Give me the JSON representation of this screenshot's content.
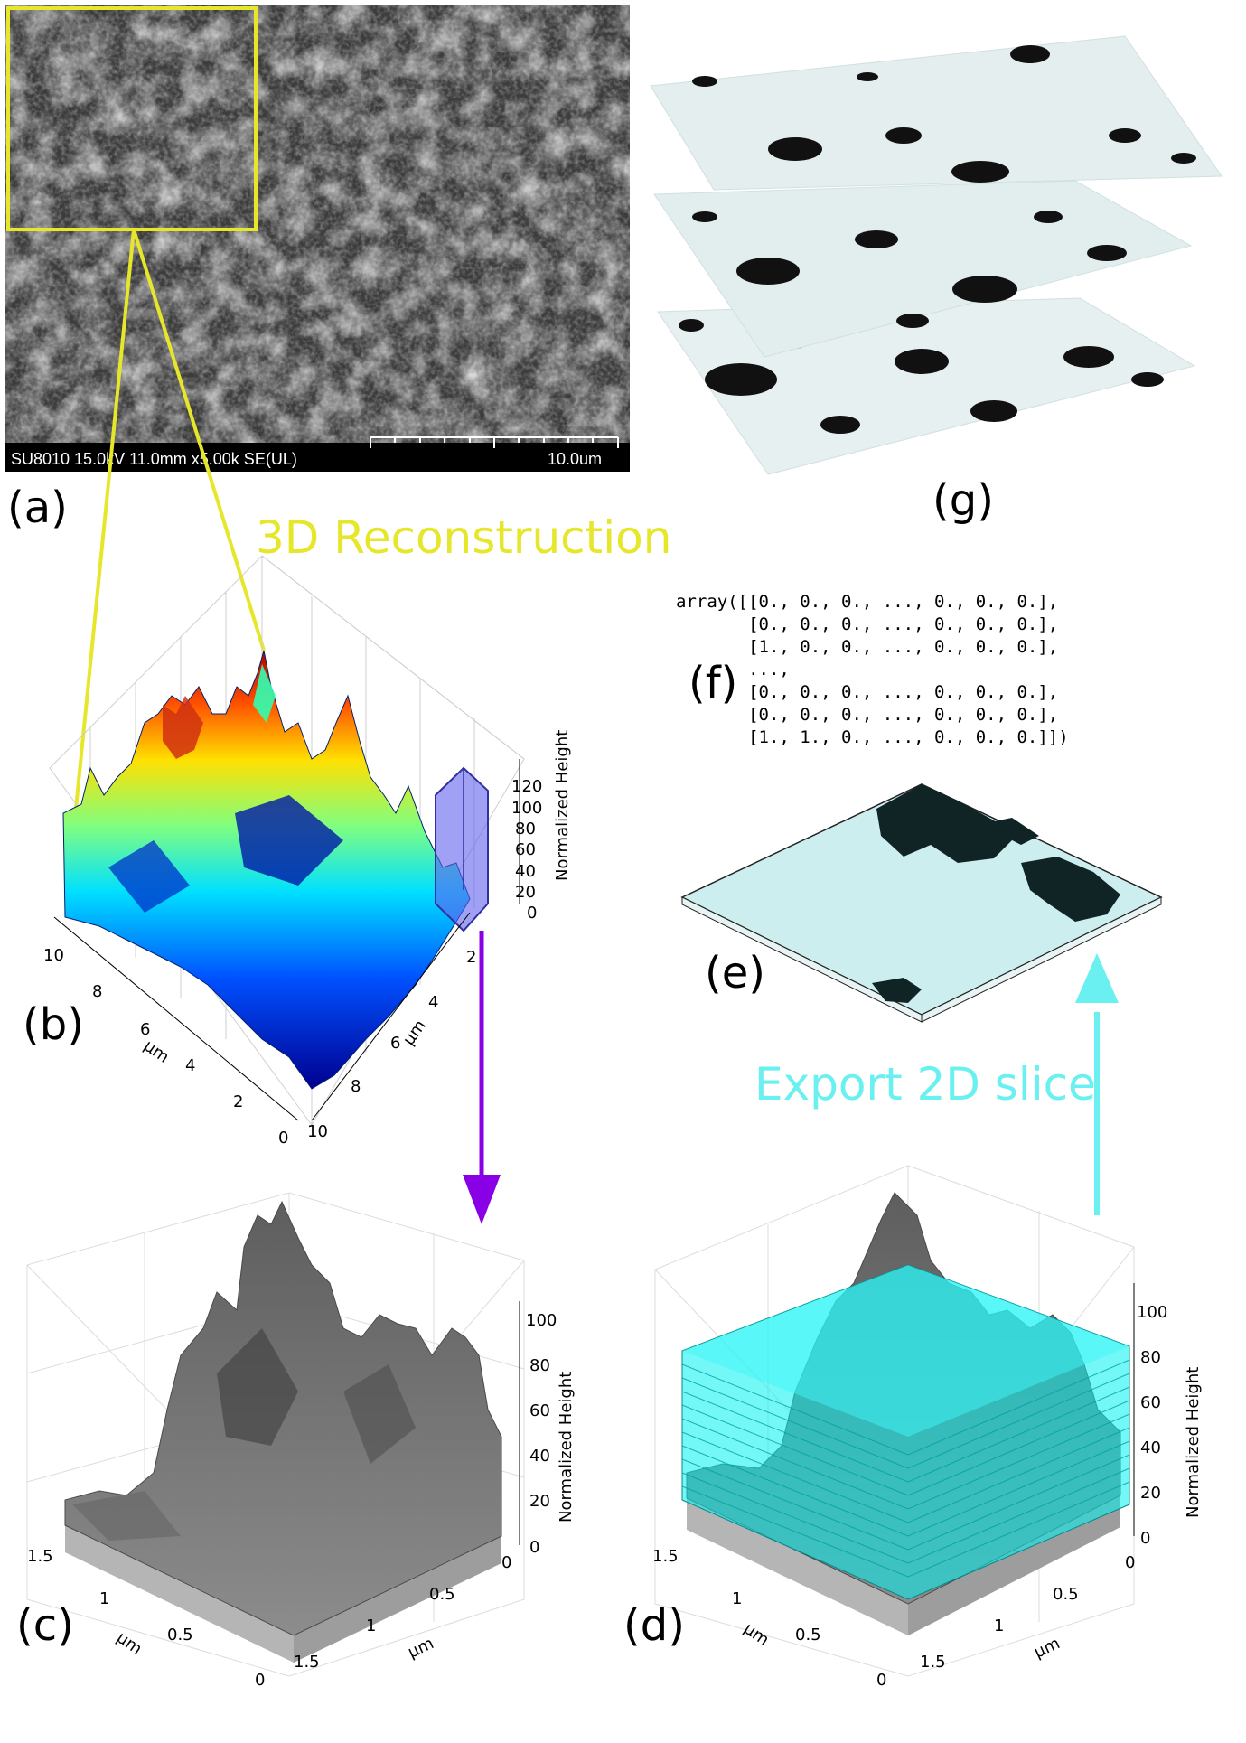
{
  "panel_labels": {
    "a": "(a)",
    "b": "(b)",
    "c": "(c)",
    "d": "(d)",
    "e": "(e)",
    "f": "(f)",
    "g": "(g)"
  },
  "sem": {
    "info": "SU8010 15.0kV 11.0mm x5.00k SE(UL)",
    "scale": "10.0um"
  },
  "annotations": {
    "reconstruction": "3D Reconstruction",
    "export": "Export 2D slice"
  },
  "array_text": [
    "array([[0., 0., 0., ..., 0., 0., 0.],",
    "       [0., 0., 0., ..., 0., 0., 0.],",
    "       [1., 0., 0., ..., 0., 0., 0.],",
    "       ...,",
    "       [0., 0., 0., ..., 0., 0., 0.],",
    "       [0., 0., 0., ..., 0., 0., 0.],",
    "       [1., 1., 0., ..., 0., 0., 0.]])"
  ],
  "plot_b": {
    "zlabel": "Normalized Height",
    "zticks": [
      "0",
      "20",
      "40",
      "60",
      "80",
      "100",
      "120"
    ],
    "x_ticks": [
      "10",
      "8",
      "6",
      "4",
      "2",
      "0"
    ],
    "y_ticks": [
      "2",
      "4",
      "6",
      "8",
      "10"
    ],
    "xlabel": "μm",
    "ylabel": "μm"
  },
  "plot_c": {
    "zlabel": "Normalized Height",
    "zticks": [
      "0",
      "20",
      "40",
      "60",
      "80",
      "100"
    ],
    "x_ticks": [
      "1.5",
      "1",
      "0.5",
      "0"
    ],
    "y_ticks": [
      "0",
      "0.5",
      "1",
      "1.5"
    ],
    "xlabel": "μm",
    "ylabel": "μm"
  },
  "plot_d": {
    "zlabel": "Normalized Height",
    "zticks": [
      "0",
      "20",
      "40",
      "60",
      "80",
      "100"
    ],
    "x_ticks": [
      "1.5",
      "1",
      "0.5",
      "0"
    ],
    "y_ticks": [
      "0",
      "0.5",
      "1",
      "1.5"
    ],
    "xlabel": "μm",
    "ylabel": "μm"
  },
  "colors": {
    "yellow": "#e6e62a",
    "purple": "#8a00e6",
    "cyan": "#6af0f0",
    "slice_fill": "#cdeeee",
    "pore": "#102426"
  }
}
